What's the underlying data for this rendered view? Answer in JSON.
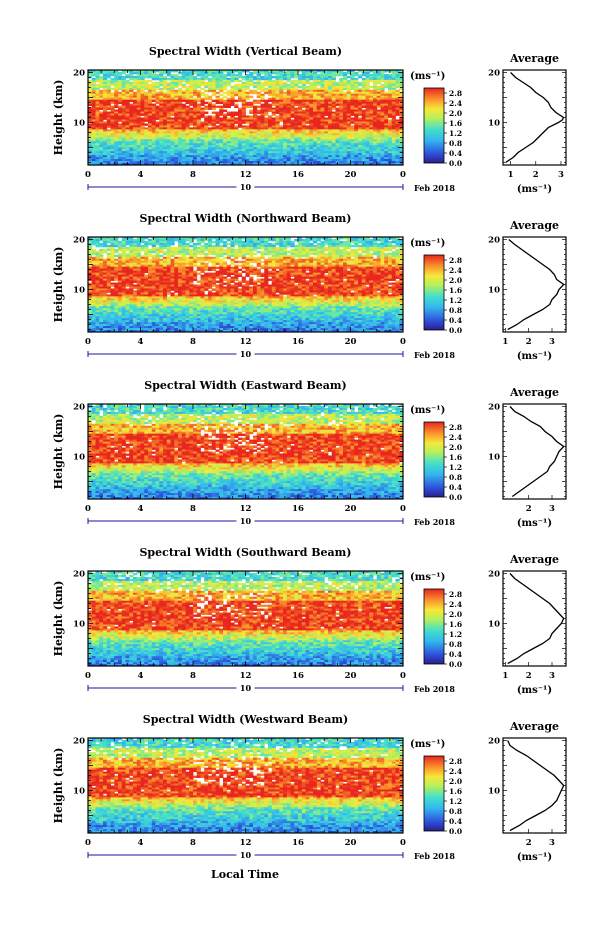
{
  "figure": {
    "x_axis_label": "Local Time",
    "date_label": "Feb 2018",
    "day_label": "10",
    "height_axis_label": "Height (km)",
    "colorbar_unit": "(ms⁻¹)",
    "average_title": "Average",
    "average_xlabel": "(ms⁻¹)"
  },
  "chart_data": [
    {
      "type": "heatmap",
      "title": "Spectral Width (Vertical Beam)",
      "x_ticks": [
        "0",
        "4",
        "8",
        "12",
        "16",
        "20",
        "0"
      ],
      "y_ticks": [
        "20",
        "10"
      ],
      "xlim": [
        0,
        24
      ],
      "ylim": [
        1.5,
        20.5
      ],
      "colorbar_ticks": [
        "2.8",
        "2.4",
        "2.0",
        "1.6",
        "1.2",
        "0.8",
        "0.4",
        "0.0"
      ],
      "colorbar_range": [
        0,
        3.0
      ],
      "profile": {
        "xlim": [
          0.7,
          3.2
        ],
        "x_ticks": [
          "1",
          "2",
          "3"
        ],
        "points": [
          [
            0.8,
            2
          ],
          [
            1.1,
            3
          ],
          [
            1.3,
            4
          ],
          [
            1.6,
            5
          ],
          [
            1.9,
            6
          ],
          [
            2.1,
            7
          ],
          [
            2.3,
            8
          ],
          [
            2.5,
            9
          ],
          [
            2.9,
            10
          ],
          [
            3.05,
            10.5
          ],
          [
            3.1,
            11
          ],
          [
            2.8,
            12
          ],
          [
            2.6,
            13
          ],
          [
            2.5,
            14
          ],
          [
            2.3,
            15
          ],
          [
            2.0,
            16
          ],
          [
            1.8,
            17
          ],
          [
            1.5,
            18
          ],
          [
            1.2,
            19
          ],
          [
            1.0,
            20
          ]
        ]
      }
    },
    {
      "type": "heatmap",
      "title": "Spectral Width (Northward Beam)",
      "x_ticks": [
        "0",
        "4",
        "8",
        "12",
        "16",
        "20",
        "0"
      ],
      "y_ticks": [
        "20",
        "10"
      ],
      "xlim": [
        0,
        24
      ],
      "ylim": [
        1.5,
        20.5
      ],
      "colorbar_ticks": [
        "2.8",
        "2.4",
        "2.0",
        "1.6",
        "1.2",
        "0.8",
        "0.4",
        "0.0"
      ],
      "colorbar_range": [
        0,
        3.0
      ],
      "profile": {
        "xlim": [
          0.9,
          3.6
        ],
        "x_ticks": [
          "1",
          "2",
          "3"
        ],
        "points": [
          [
            1.1,
            2
          ],
          [
            1.5,
            3
          ],
          [
            1.8,
            4
          ],
          [
            2.2,
            5
          ],
          [
            2.6,
            6
          ],
          [
            2.9,
            7
          ],
          [
            3.0,
            8
          ],
          [
            3.2,
            9
          ],
          [
            3.3,
            10
          ],
          [
            3.5,
            11
          ],
          [
            3.2,
            12
          ],
          [
            3.1,
            13
          ],
          [
            2.9,
            14
          ],
          [
            2.6,
            15
          ],
          [
            2.3,
            16
          ],
          [
            2.0,
            17
          ],
          [
            1.7,
            18
          ],
          [
            1.4,
            19
          ],
          [
            1.15,
            20
          ]
        ]
      }
    },
    {
      "type": "heatmap",
      "title": "Spectral Width (Eastward Beam)",
      "x_ticks": [
        "0",
        "4",
        "8",
        "12",
        "16",
        "20",
        "0"
      ],
      "y_ticks": [
        "20",
        "10"
      ],
      "xlim": [
        0,
        24
      ],
      "ylim": [
        1.5,
        20.5
      ],
      "colorbar_ticks": [
        "2.8",
        "2.4",
        "2.0",
        "1.6",
        "1.2",
        "0.8",
        "0.4",
        "0.0"
      ],
      "colorbar_range": [
        0,
        3.0
      ],
      "profile": {
        "xlim": [
          0.9,
          3.6
        ],
        "x_ticks": [
          "2",
          "3"
        ],
        "points": [
          [
            1.3,
            2
          ],
          [
            1.6,
            3
          ],
          [
            1.9,
            4
          ],
          [
            2.2,
            5
          ],
          [
            2.5,
            6
          ],
          [
            2.8,
            7
          ],
          [
            2.9,
            8
          ],
          [
            3.1,
            9
          ],
          [
            3.2,
            10
          ],
          [
            3.3,
            11
          ],
          [
            3.5,
            12
          ],
          [
            3.2,
            13
          ],
          [
            3.0,
            14
          ],
          [
            2.7,
            15
          ],
          [
            2.5,
            16
          ],
          [
            2.1,
            17
          ],
          [
            1.8,
            18
          ],
          [
            1.4,
            19
          ],
          [
            1.2,
            20
          ]
        ]
      }
    },
    {
      "type": "heatmap",
      "title": "Spectral Width (Southward Beam)",
      "x_ticks": [
        "0",
        "4",
        "8",
        "12",
        "16",
        "20",
        "0"
      ],
      "y_ticks": [
        "20",
        "10"
      ],
      "xlim": [
        0,
        24
      ],
      "ylim": [
        1.5,
        20.5
      ],
      "colorbar_ticks": [
        "2.8",
        "2.4",
        "2.0",
        "1.6",
        "1.2",
        "0.8",
        "0.4",
        "0.0"
      ],
      "colorbar_range": [
        0,
        3.0
      ],
      "profile": {
        "xlim": [
          0.9,
          3.6
        ],
        "x_ticks": [
          "1",
          "2",
          "3"
        ],
        "points": [
          [
            1.1,
            2
          ],
          [
            1.5,
            3
          ],
          [
            1.8,
            4
          ],
          [
            2.2,
            5
          ],
          [
            2.6,
            6
          ],
          [
            2.9,
            7
          ],
          [
            3.0,
            8
          ],
          [
            3.2,
            9
          ],
          [
            3.4,
            10
          ],
          [
            3.5,
            11
          ],
          [
            3.3,
            12
          ],
          [
            3.1,
            13
          ],
          [
            2.9,
            14
          ],
          [
            2.6,
            15
          ],
          [
            2.3,
            16
          ],
          [
            2.0,
            17
          ],
          [
            1.7,
            18
          ],
          [
            1.4,
            19
          ],
          [
            1.2,
            20
          ]
        ]
      }
    },
    {
      "type": "heatmap",
      "title": "Spectral Width (Westward Beam)",
      "x_ticks": [
        "0",
        "4",
        "8",
        "12",
        "16",
        "20",
        "0"
      ],
      "y_ticks": [
        "20",
        "10"
      ],
      "xlim": [
        0,
        24
      ],
      "ylim": [
        1.5,
        20.5
      ],
      "colorbar_ticks": [
        "2.8",
        "2.4",
        "2.0",
        "1.6",
        "1.2",
        "0.8",
        "0.4",
        "0.0"
      ],
      "colorbar_range": [
        0,
        3.0
      ],
      "profile": {
        "xlim": [
          0.9,
          3.6
        ],
        "x_ticks": [
          "2",
          "3"
        ],
        "points": [
          [
            1.2,
            2
          ],
          [
            1.6,
            3
          ],
          [
            1.9,
            4
          ],
          [
            2.3,
            5
          ],
          [
            2.7,
            6
          ],
          [
            3.0,
            7
          ],
          [
            3.2,
            8
          ],
          [
            3.3,
            9
          ],
          [
            3.4,
            10
          ],
          [
            3.5,
            11
          ],
          [
            3.3,
            12
          ],
          [
            3.1,
            13
          ],
          [
            2.8,
            14
          ],
          [
            2.5,
            15
          ],
          [
            2.2,
            16
          ],
          [
            1.9,
            17
          ],
          [
            1.5,
            18
          ],
          [
            1.2,
            19
          ],
          [
            1.1,
            20
          ]
        ]
      }
    }
  ]
}
